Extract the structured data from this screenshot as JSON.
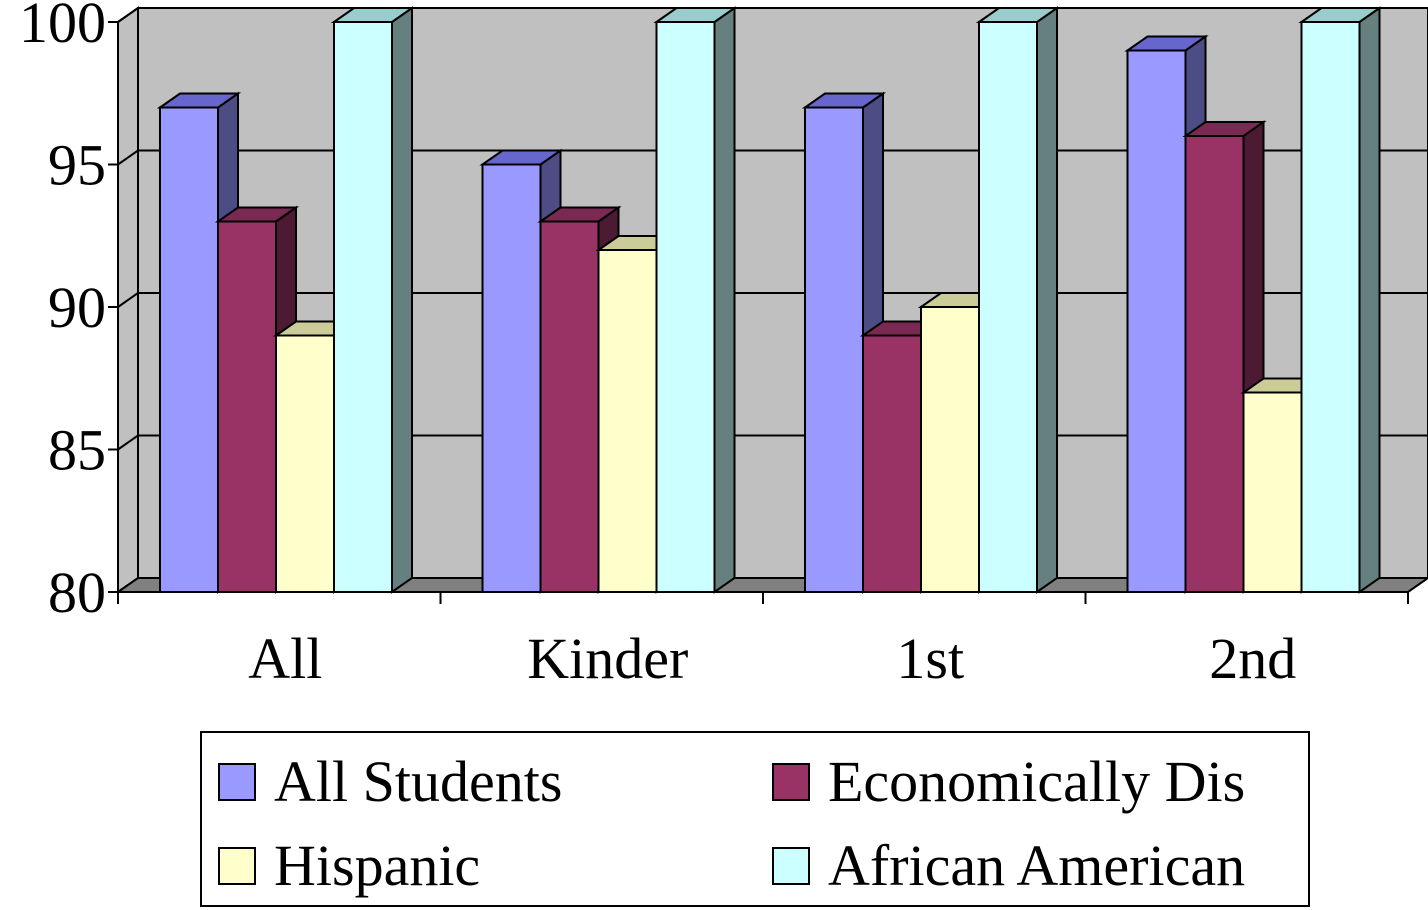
{
  "chart_data": {
    "type": "bar",
    "style": "3d-clustered-column",
    "categories": [
      "All",
      "Kinder",
      "1st",
      "2nd"
    ],
    "series": [
      {
        "name": "All Students",
        "values": [
          97,
          95,
          97,
          99
        ],
        "color": "#9999FF",
        "side_color": "#4D4D86",
        "top_color": "#6666CC"
      },
      {
        "name": "Economically Dis",
        "values": [
          93,
          93,
          89,
          96
        ],
        "color": "#993366",
        "side_color": "#4D1A33",
        "top_color": "#7A2952"
      },
      {
        "name": "Hispanic",
        "values": [
          89,
          92,
          90,
          87
        ],
        "color": "#FFFFCC",
        "side_color": "#80806A",
        "top_color": "#CCCC99"
      },
      {
        "name": "African American",
        "values": [
          100,
          100,
          100,
          100
        ],
        "color": "#CCFFFF",
        "side_color": "#668080",
        "top_color": "#99CCCC"
      }
    ],
    "ylim": [
      80,
      100
    ],
    "yticks": [
      "80",
      "85",
      "90",
      "95",
      "100"
    ],
    "grid": true,
    "wall_color": "#C0C0C0",
    "floor_color": "#808080",
    "legend_position": "bottom"
  }
}
